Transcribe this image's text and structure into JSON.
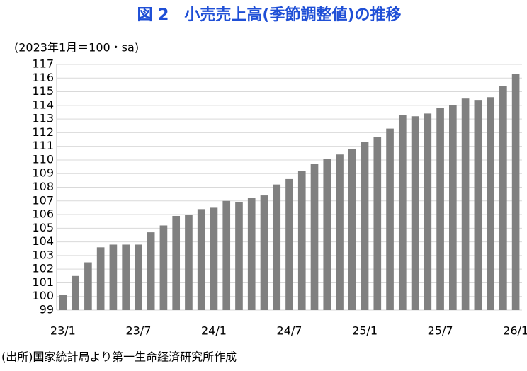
{
  "chart_data": {
    "type": "bar",
    "title": "図 2　小売売上高(季節調整値)の推移",
    "y_axis_label": "(2023年1月＝100・sa)",
    "source": "(出所)国家統計局より第一生命経済研究所作成",
    "categories": [
      "23/1",
      null,
      null,
      null,
      null,
      null,
      "23/7",
      null,
      null,
      null,
      null,
      null,
      "24/1",
      null,
      null,
      null,
      null,
      null,
      "24/7",
      null,
      null,
      null,
      null,
      null,
      "25/1",
      null,
      null,
      null,
      null,
      null,
      "25/7",
      null,
      null,
      null,
      null,
      null,
      "26/1"
    ],
    "values": [
      100.1,
      101.5,
      102.5,
      103.6,
      103.8,
      103.8,
      103.8,
      104.7,
      105.2,
      105.9,
      106.0,
      106.4,
      106.5,
      107.0,
      106.9,
      107.2,
      107.4,
      108.2,
      108.6,
      109.2,
      109.7,
      110.1,
      110.4,
      110.8,
      111.3,
      111.7,
      112.3,
      113.3,
      113.2,
      113.4,
      113.8,
      114.0,
      114.5,
      114.4,
      114.6,
      115.4,
      116.3
    ],
    "color": "#808080",
    "ylim": [
      99,
      117
    ],
    "yticks": [
      99,
      100,
      101,
      102,
      103,
      104,
      105,
      106,
      107,
      108,
      109,
      110,
      111,
      112,
      113,
      114,
      115,
      116,
      117
    ],
    "grid": true
  }
}
